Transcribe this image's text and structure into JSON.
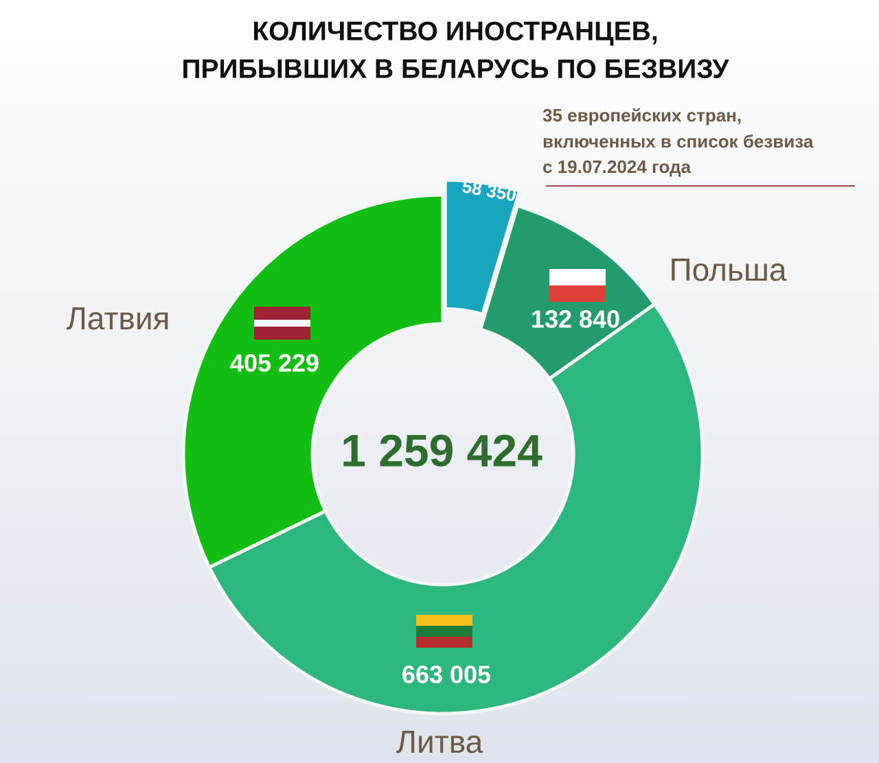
{
  "chart_data": {
    "type": "pie",
    "title": [
      "КОЛИЧЕСТВО ИНОСТРАНЦЕВ,",
      "ПРИБЫВШИХ В БЕЛАРУСЬ ПО БЕЗВИЗУ"
    ],
    "annotation": [
      "35 европейских стран,",
      "включенных в список безвиза",
      "с 19.07.2024 года"
    ],
    "center_text": "1 259 424",
    "categories": [
      null,
      "Польша",
      "Литва",
      "Латвия"
    ],
    "values": [
      58350,
      132840,
      663005,
      405229
    ],
    "value_labels": [
      "58 350",
      "132 840",
      "663 005",
      "405 229"
    ],
    "colors": [
      "#17a6be",
      "#249b6d",
      "#2db67e",
      "#13be13"
    ],
    "donut": true,
    "exploded": [
      true,
      false,
      false,
      false
    ]
  }
}
